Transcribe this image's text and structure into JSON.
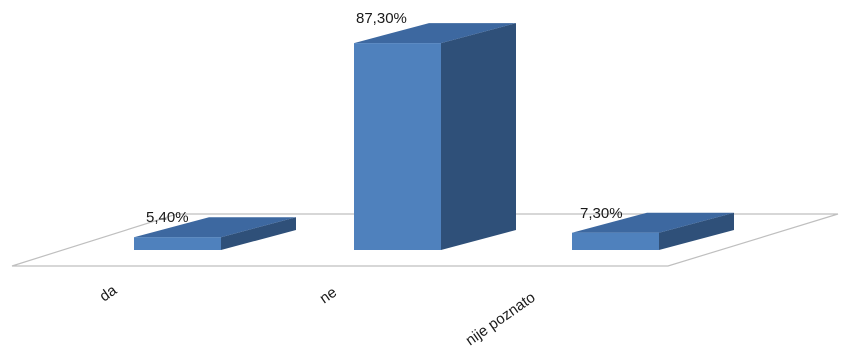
{
  "chart_data": {
    "type": "bar",
    "style": "3d-column",
    "categories": [
      "da",
      "ne",
      "nije poznato"
    ],
    "values": [
      5.4,
      87.3,
      7.3
    ],
    "data_labels": [
      "5,40%",
      "87,30%",
      "7,30%"
    ],
    "ylim": [
      0,
      100
    ],
    "grid": false,
    "legend": "none",
    "colors": {
      "front": "#4f81bd",
      "side": "#2f5079",
      "top": "#3d68a0",
      "floor": "#bfbfbf"
    }
  }
}
